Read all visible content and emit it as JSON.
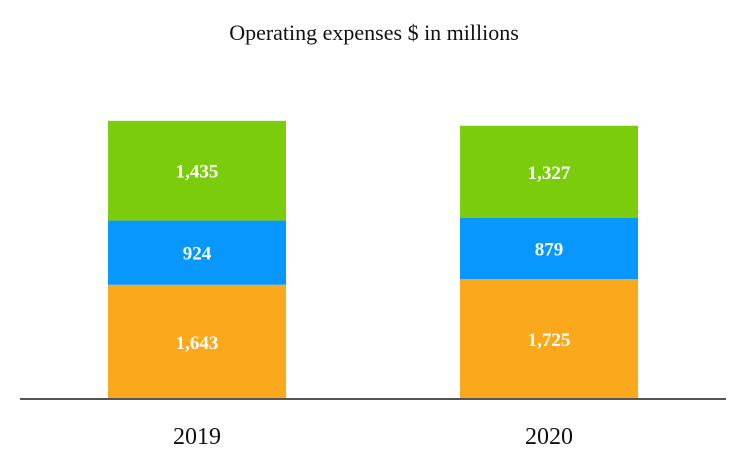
{
  "chart_data": {
    "type": "bar",
    "stacked": true,
    "title": "Operating expenses $ in millions",
    "categories": [
      "2019",
      "2020"
    ],
    "series": [
      {
        "name": "bottom",
        "color": "#F9A91B",
        "values": [
          1643,
          1725
        ],
        "labels": [
          "1,643",
          "1,725"
        ]
      },
      {
        "name": "middle",
        "color": "#0897FC",
        "values": [
          924,
          879
        ],
        "labels": [
          "924",
          "879"
        ]
      },
      {
        "name": "top",
        "color": "#7ACC0C",
        "values": [
          1435,
          1327
        ],
        "labels": [
          "1,435",
          "1,327"
        ]
      }
    ],
    "xlabel": "",
    "ylabel": "",
    "ylim": [
      0,
      4100
    ],
    "grid": false,
    "legend": "none",
    "axis_color": "#555555"
  }
}
